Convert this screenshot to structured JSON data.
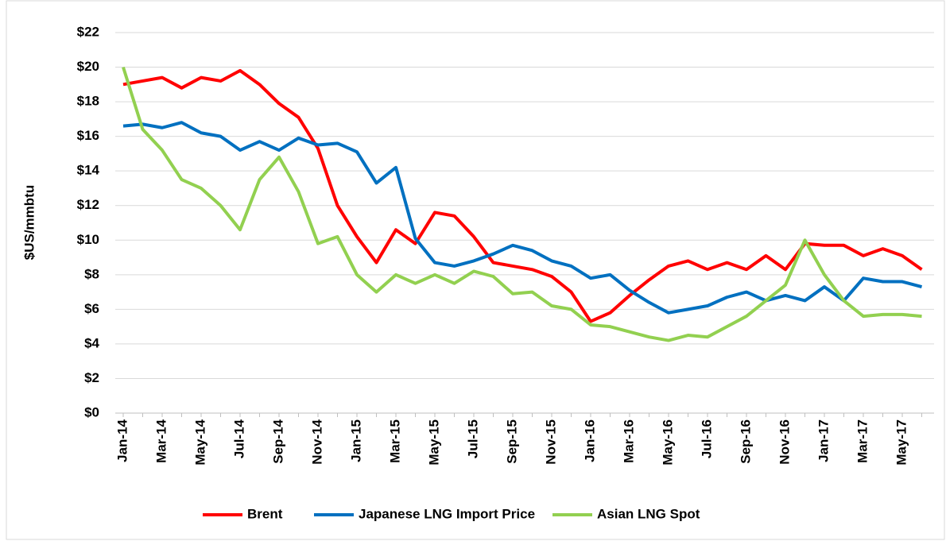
{
  "chart_data": {
    "type": "line",
    "y_label": "$US/mmbtu",
    "categories": [
      "Jan-14",
      null,
      "Mar-14",
      null,
      "May-14",
      null,
      "Jul-14",
      null,
      "Sep-14",
      null,
      "Nov-14",
      null,
      "Jan-15",
      null,
      "Mar-15",
      null,
      "May-15",
      null,
      "Jul-15",
      null,
      "Sep-15",
      null,
      "Nov-15",
      null,
      "Jan-16",
      null,
      "Mar-16",
      null,
      "May-16",
      null,
      "Jul-16",
      null,
      "Sep-16",
      null,
      "Nov-16",
      null,
      "Jan-17",
      null,
      "Mar-17",
      null,
      "May-17",
      null
    ],
    "series": [
      {
        "name": "Brent",
        "color": "#ff0000",
        "values": [
          19.0,
          19.2,
          19.4,
          18.8,
          19.4,
          19.2,
          19.8,
          19.0,
          17.9,
          17.1,
          15.3,
          12.0,
          10.2,
          8.7,
          10.6,
          9.8,
          11.6,
          11.4,
          10.2,
          8.7,
          8.5,
          8.3,
          7.9,
          7.0,
          5.3,
          5.8,
          6.8,
          7.7,
          8.5,
          8.8,
          8.3,
          8.7,
          8.3,
          9.1,
          8.3,
          9.8,
          9.7,
          9.7,
          9.1,
          9.5,
          9.1,
          8.3
        ]
      },
      {
        "name": "Japanese LNG Import Price",
        "color": "#0070c0",
        "values": [
          16.6,
          16.7,
          16.5,
          16.8,
          16.2,
          16.0,
          15.2,
          15.7,
          15.2,
          15.9,
          15.5,
          15.6,
          15.1,
          13.3,
          14.2,
          10.1,
          8.7,
          8.5,
          8.8,
          9.2,
          9.7,
          9.4,
          8.8,
          8.5,
          7.8,
          8.0,
          7.1,
          6.4,
          5.8,
          6.0,
          6.2,
          6.7,
          7.0,
          6.5,
          6.8,
          6.5,
          7.3,
          6.5,
          7.8,
          7.6,
          7.6,
          7.3
        ]
      },
      {
        "name": "Asian LNG Spot",
        "color": "#92d050",
        "values": [
          20.0,
          16.4,
          15.2,
          13.5,
          13.0,
          12.0,
          10.6,
          13.5,
          14.8,
          12.8,
          9.8,
          10.2,
          8.0,
          7.0,
          8.0,
          7.5,
          8.0,
          7.5,
          8.2,
          7.9,
          6.9,
          7.0,
          6.2,
          6.0,
          5.1,
          5.0,
          4.7,
          4.4,
          4.2,
          4.5,
          4.4,
          5.0,
          5.6,
          6.5,
          7.4,
          10.0,
          8.0,
          6.5,
          5.6,
          5.7,
          5.7,
          5.6
        ]
      }
    ],
    "ylim": [
      0,
      22
    ],
    "yticks": [
      {
        "value": 0,
        "label": "$0"
      },
      {
        "value": 2,
        "label": "$2"
      },
      {
        "value": 4,
        "label": "$4"
      },
      {
        "value": 6,
        "label": "$6"
      },
      {
        "value": 8,
        "label": "$8"
      },
      {
        "value": 10,
        "label": "$10"
      },
      {
        "value": 12,
        "label": "$12"
      },
      {
        "value": 14,
        "label": "$14"
      },
      {
        "value": 16,
        "label": "$16"
      },
      {
        "value": 18,
        "label": "$18"
      },
      {
        "value": 20,
        "label": "$20"
      },
      {
        "value": 22,
        "label": "$22"
      }
    ],
    "grid": true,
    "legend": "bottom"
  }
}
